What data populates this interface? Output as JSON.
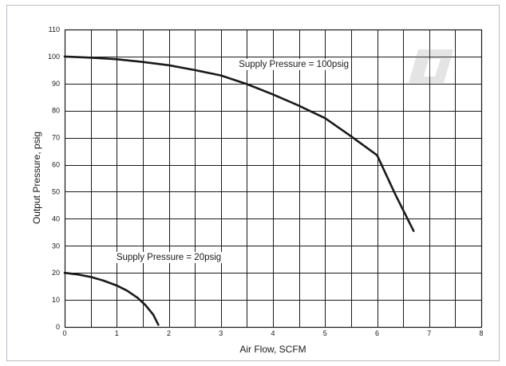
{
  "chart_data": {
    "type": "line",
    "xlabel": "Air Flow, SCFM",
    "ylabel": "Output Pressure, psig",
    "xlim": [
      0,
      8
    ],
    "ylim": [
      0,
      110
    ],
    "x_ticks": [
      "0",
      "1",
      "2",
      "3",
      "4",
      "5",
      "6",
      "7",
      "8"
    ],
    "y_ticks": [
      "0",
      "10",
      "20",
      "30",
      "40",
      "50",
      "60",
      "70",
      "80",
      "90",
      "100",
      "110"
    ],
    "grid": true,
    "series": [
      {
        "name": "Supply Pressure = 100psig",
        "x": [
          0,
          0.5,
          1.0,
          1.5,
          2.0,
          2.5,
          3.0,
          3.5,
          4.0,
          4.5,
          5.0,
          5.5,
          6.0,
          6.35,
          6.7
        ],
        "y": [
          100,
          99.6,
          99,
          98,
          96.8,
          95,
          93,
          89.8,
          86,
          81.8,
          77.2,
          70.5,
          63.5,
          49,
          35.5
        ]
      },
      {
        "name": "Supply Pressure = 20psig",
        "x": [
          0,
          0.25,
          0.5,
          0.75,
          1.0,
          1.2,
          1.4,
          1.55,
          1.7,
          1.8
        ],
        "y": [
          20,
          19.4,
          18.5,
          17.1,
          15.3,
          13.4,
          10.8,
          8.1,
          4.6,
          0.8
        ]
      }
    ],
    "annotations": [
      {
        "text": "Supply Pressure = 100psig",
        "x": 4.4,
        "y": 96.2
      },
      {
        "text": "Supply Pressure = 20psig",
        "x": 2.0,
        "y": 24.8
      }
    ],
    "line_color": "#1a1a1a",
    "grid_color": "#1a1a1a"
  }
}
